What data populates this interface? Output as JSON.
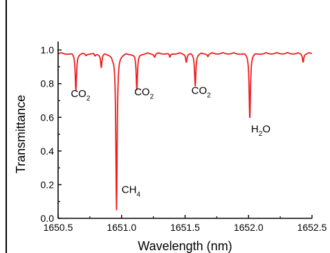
{
  "chart_data": {
    "type": "line",
    "title": "",
    "xlabel": "Wavelength (nm)",
    "ylabel": "Transmittance",
    "xlim": [
      1650.5,
      1652.5
    ],
    "ylim": [
      0.0,
      1.05
    ],
    "x_ticks": [
      "1650.5",
      "1651.0",
      "1651.5",
      "1652.0",
      "1652.5"
    ],
    "y_ticks": [
      "0.0",
      "0.2",
      "0.4",
      "0.6",
      "0.8",
      "1.0"
    ],
    "grid": false,
    "legend": "none",
    "series": [
      {
        "color": "#ee1c1c",
        "baseline": 0.985,
        "absorption_lines": [
          {
            "center": 1650.64,
            "depth": 0.22
          },
          {
            "center": 1650.72,
            "depth": 0.01
          },
          {
            "center": 1650.79,
            "depth": 0.015
          },
          {
            "center": 1650.84,
            "depth": 0.08
          },
          {
            "center": 1650.93,
            "depth": 0.015
          },
          {
            "center": 1650.96,
            "depth": 0.93
          },
          {
            "center": 1651.12,
            "depth": 0.22
          },
          {
            "center": 1651.26,
            "depth": 0.02
          },
          {
            "center": 1651.38,
            "depth": 0.025
          },
          {
            "center": 1651.51,
            "depth": 0.05
          },
          {
            "center": 1651.58,
            "depth": 0.19
          },
          {
            "center": 1651.68,
            "depth": 0.015
          },
          {
            "center": 1652.01,
            "depth": 0.39
          },
          {
            "center": 1652.43,
            "depth": 0.05
          }
        ]
      }
    ],
    "annotations": [
      {
        "base": "CO",
        "sub": "2",
        "x": 1650.6,
        "y": 0.72
      },
      {
        "base": "CH",
        "sub": "4",
        "x": 1651.0,
        "y": 0.15
      },
      {
        "base": "CO",
        "sub": "2",
        "x": 1651.1,
        "y": 0.73
      },
      {
        "base": "CO",
        "sub": "2",
        "x": 1651.55,
        "y": 0.74
      },
      {
        "base": "H",
        "sub": "2",
        "tail": "O",
        "x": 1652.02,
        "y": 0.51
      }
    ]
  }
}
